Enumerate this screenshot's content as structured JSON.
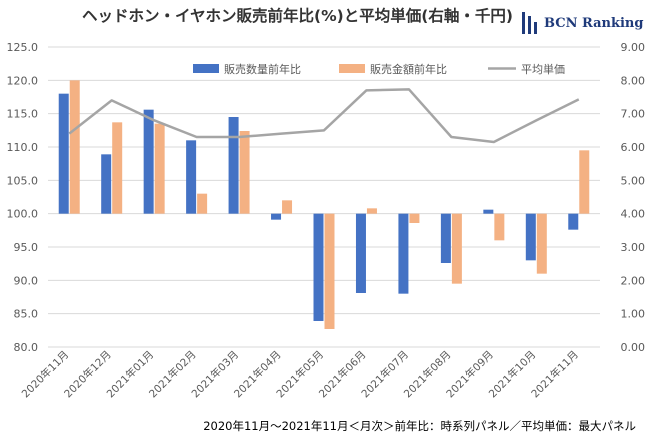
{
  "header": {
    "title": "ヘッドホン・イヤホン販売前年比(%)と平均単価(右軸・千円)",
    "brand": "BCN Ranking"
  },
  "footnote": "2020年11月～2021年11月＜月次＞前年比：時系列パネル／平均単価：最大パネル",
  "colors": {
    "units": "#4472c4",
    "revenue": "#f4b183",
    "avg_price": "#a5a5a5",
    "grid": "#d9d9d9",
    "brand": "#1f3a7a"
  },
  "chart_data": {
    "type": "bar",
    "title": "ヘッドホン・イヤホン販売前年比(%)と平均単価(右軸・千円)",
    "categories": [
      "2020年11月",
      "2020年12月",
      "2021年01月",
      "2021年02月",
      "2021年03月",
      "2021年04月",
      "2021年05月",
      "2021年06月",
      "2021年07月",
      "2021年08月",
      "2021年09月",
      "2021年10月",
      "2021年11月"
    ],
    "series": [
      {
        "name": "販売数量前年比",
        "type": "bar",
        "axis": "left",
        "values": [
          118.0,
          108.9,
          115.6,
          111.0,
          114.5,
          99.1,
          83.9,
          88.1,
          88.0,
          92.6,
          100.6,
          93.0,
          97.6
        ]
      },
      {
        "name": "販売金額前年比",
        "type": "bar",
        "axis": "left",
        "values": [
          120.0,
          113.7,
          113.5,
          103.0,
          112.4,
          102.0,
          82.7,
          100.8,
          98.6,
          89.5,
          96.0,
          91.0,
          109.5
        ]
      },
      {
        "name": "平均単価",
        "type": "line",
        "axis": "right",
        "values": [
          6.4,
          7.4,
          6.8,
          6.3,
          6.3,
          6.4,
          6.5,
          7.7,
          7.73,
          6.3,
          6.15,
          6.8,
          7.43
        ]
      }
    ],
    "baseline": 100,
    "ylim": [
      80,
      125
    ],
    "yticks": [
      "125.0",
      "120.0",
      "115.0",
      "110.0",
      "105.0",
      "100.0",
      "95.0",
      "90.0",
      "85.0",
      "80.0"
    ],
    "y2lim": [
      0,
      9
    ],
    "y2ticks": [
      "9.00",
      "8.00",
      "7.00",
      "6.00",
      "5.00",
      "4.00",
      "3.00",
      "2.00",
      "1.00",
      "0.00"
    ],
    "legend_position": "top",
    "grid": true
  }
}
